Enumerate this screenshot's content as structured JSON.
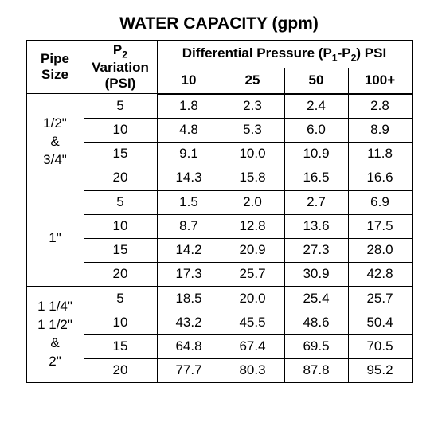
{
  "title": "WATER CAPACITY (gpm)",
  "headers": {
    "pipe_size": "Pipe\nSize",
    "p2_variation": "P₂\nVariation\n(PSI)",
    "diff_pressure_group": "Differential Pressure (P₁-P₂) PSI",
    "dp_cols": [
      "10",
      "25",
      "50",
      "100+"
    ]
  },
  "groups": [
    {
      "pipe_label": "1/2\"\n&\n3/4\"",
      "rows": [
        {
          "p2": "5",
          "v": [
            "1.8",
            "2.3",
            "2.4",
            "2.8"
          ]
        },
        {
          "p2": "10",
          "v": [
            "4.8",
            "5.3",
            "6.0",
            "8.9"
          ]
        },
        {
          "p2": "15",
          "v": [
            "9.1",
            "10.0",
            "10.9",
            "11.8"
          ]
        },
        {
          "p2": "20",
          "v": [
            "14.3",
            "15.8",
            "16.5",
            "16.6"
          ]
        }
      ]
    },
    {
      "pipe_label": "1\"",
      "rows": [
        {
          "p2": "5",
          "v": [
            "1.5",
            "2.0",
            "2.7",
            "6.9"
          ]
        },
        {
          "p2": "10",
          "v": [
            "8.7",
            "12.8",
            "13.6",
            "17.5"
          ]
        },
        {
          "p2": "15",
          "v": [
            "14.2",
            "20.9",
            "27.3",
            "28.0"
          ]
        },
        {
          "p2": "20",
          "v": [
            "17.3",
            "25.7",
            "30.9",
            "42.8"
          ]
        }
      ]
    },
    {
      "pipe_label": "1 1/4\"\n1 1/2\"\n&\n2\"",
      "rows": [
        {
          "p2": "5",
          "v": [
            "18.5",
            "20.0",
            "25.4",
            "25.7"
          ]
        },
        {
          "p2": "10",
          "v": [
            "43.2",
            "45.5",
            "48.6",
            "50.4"
          ]
        },
        {
          "p2": "15",
          "v": [
            "64.8",
            "67.4",
            "69.5",
            "70.5"
          ]
        },
        {
          "p2": "20",
          "v": [
            "77.7",
            "80.3",
            "87.8",
            "95.2"
          ]
        }
      ]
    }
  ]
}
